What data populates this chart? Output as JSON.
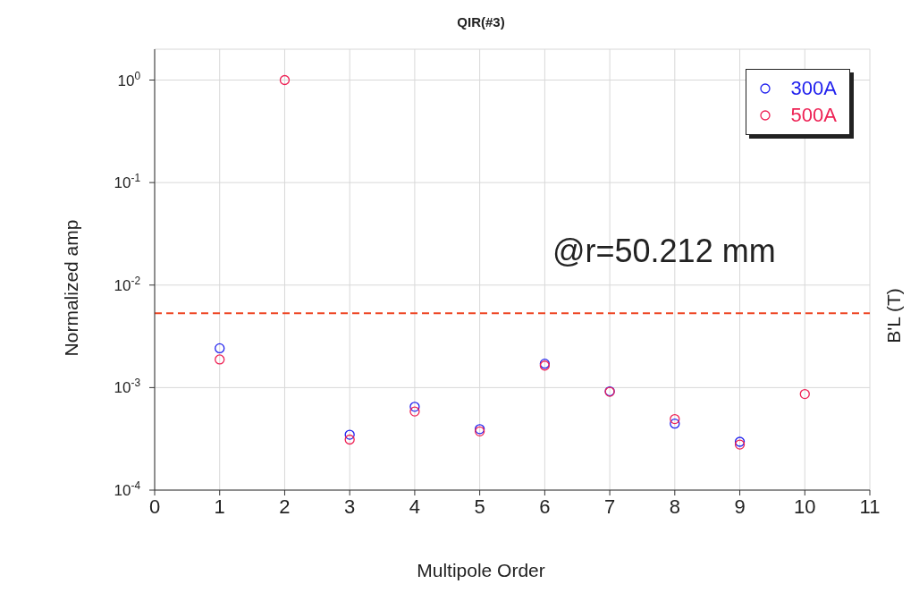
{
  "chart_data": {
    "type": "scatter",
    "title": "QIR(#3)",
    "xlabel": "Multipole Order",
    "ylabel": "Normalized amp",
    "y2label": "B'L (T)",
    "annotations": [
      "@r=50.212 mm"
    ],
    "x": [
      1,
      2,
      3,
      4,
      5,
      6,
      7,
      8,
      9,
      10
    ],
    "series": [
      {
        "name": "300A",
        "color": "#2222ee",
        "values": [
          0.00242,
          null,
          0.000347,
          0.00065,
          0.000393,
          0.00171,
          0.00092,
          0.000445,
          0.000296,
          null
        ]
      },
      {
        "name": "500A",
        "color": "#ee2255",
        "values": [
          0.00188,
          1.0,
          0.000311,
          0.000585,
          0.000374,
          0.00164,
          0.00091,
          0.000493,
          0.000278,
          0.000865
        ]
      }
    ],
    "xlim": [
      0,
      11
    ],
    "xticks": [
      0,
      1,
      2,
      3,
      4,
      5,
      6,
      7,
      8,
      9,
      10,
      11
    ],
    "ylim": [
      0.0001,
      2
    ],
    "log": "y",
    "yticks": [
      {
        "value": 0.0001,
        "label": "10$^{-4}$"
      },
      {
        "value": 0.001,
        "label": "10$^{-3}$"
      },
      {
        "value": 0.01,
        "label": "10$^{-2}$"
      },
      {
        "value": 0.1,
        "label": "10$^{-1}$"
      },
      {
        "value": 1,
        "label": "10$^{0}$"
      }
    ],
    "ref_lines": [
      {
        "axis": "y",
        "value": 0.0053,
        "color": "#ee4422",
        "line_style": "dashed"
      }
    ],
    "grid": true,
    "legend": "top right",
    "marker": "circle"
  }
}
